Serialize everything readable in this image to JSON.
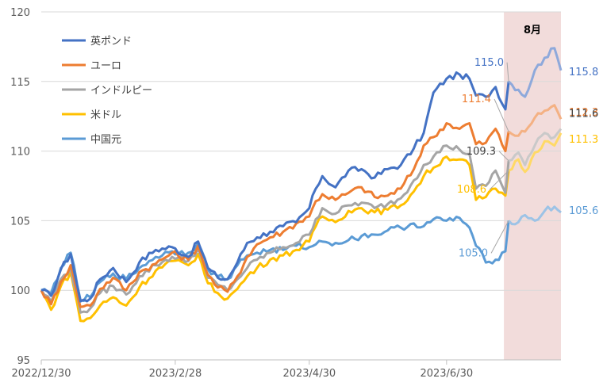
{
  "chart_data": {
    "type": "line",
    "title": "",
    "xlabel": "",
    "ylabel": "",
    "ylim": [
      95,
      120
    ],
    "yticks": [
      95,
      100,
      105,
      110,
      115,
      120
    ],
    "x_tick_labels": [
      "2022/12/30",
      "2023/2/28",
      "2023/4/30",
      "2023/6/30"
    ],
    "x_tick_index": [
      0,
      41,
      82,
      124
    ],
    "n_points": 160,
    "highlight": {
      "label": "8月",
      "start_index": 143,
      "end_index": 159,
      "color": "#f2dcdb"
    },
    "legend_position": "top-left",
    "grid": {
      "y": true,
      "x": false
    },
    "series": [
      {
        "name": "英ポンド",
        "color": "#4472c4",
        "faded_color": "#8ea9db",
        "keypoints": [
          [
            0,
            100.0
          ],
          [
            3,
            99.6
          ],
          [
            6,
            101.5
          ],
          [
            9,
            102.6
          ],
          [
            12,
            99.2
          ],
          [
            15,
            99.4
          ],
          [
            18,
            100.8
          ],
          [
            22,
            101.6
          ],
          [
            26,
            100.6
          ],
          [
            30,
            102.0
          ],
          [
            35,
            102.9
          ],
          [
            40,
            103.1
          ],
          [
            45,
            102.4
          ],
          [
            48,
            103.5
          ],
          [
            51,
            101.6
          ],
          [
            54,
            100.9
          ],
          [
            57,
            100.8
          ],
          [
            60,
            102.0
          ],
          [
            63,
            103.4
          ],
          [
            66,
            103.8
          ],
          [
            70,
            104.2
          ],
          [
            74,
            104.6
          ],
          [
            78,
            104.9
          ],
          [
            82,
            105.9
          ],
          [
            84,
            107.3
          ],
          [
            86,
            108.2
          ],
          [
            90,
            107.4
          ],
          [
            94,
            108.6
          ],
          [
            98,
            108.7
          ],
          [
            102,
            108.1
          ],
          [
            106,
            108.7
          ],
          [
            110,
            109.0
          ],
          [
            114,
            110.2
          ],
          [
            117,
            111.3
          ],
          [
            120,
            114.2
          ],
          [
            124,
            115.2
          ],
          [
            128,
            115.5
          ],
          [
            131,
            115.2
          ],
          [
            133,
            114.0
          ],
          [
            136,
            113.9
          ],
          [
            139,
            114.6
          ],
          [
            142,
            113.0
          ],
          [
            143,
            115.0
          ],
          [
            146,
            114.4
          ],
          [
            148,
            113.9
          ],
          [
            151,
            115.8
          ],
          [
            154,
            116.7
          ],
          [
            157,
            117.4
          ],
          [
            159,
            115.8
          ]
        ],
        "highlight_labels": [
          {
            "index": 143,
            "text": "115.0"
          },
          {
            "index": 159,
            "text": "115.8"
          }
        ]
      },
      {
        "name": "ユーロ",
        "color": "#ed7d31",
        "faded_color": "#f4b183",
        "keypoints": [
          [
            0,
            100.0
          ],
          [
            3,
            99.0
          ],
          [
            6,
            100.6
          ],
          [
            9,
            101.8
          ],
          [
            12,
            98.8
          ],
          [
            15,
            98.9
          ],
          [
            18,
            100.1
          ],
          [
            22,
            100.9
          ],
          [
            26,
            100.0
          ],
          [
            30,
            101.3
          ],
          [
            35,
            101.9
          ],
          [
            40,
            102.7
          ],
          [
            45,
            102.2
          ],
          [
            48,
            103.2
          ],
          [
            51,
            101.1
          ],
          [
            54,
            100.2
          ],
          [
            57,
            99.9
          ],
          [
            60,
            101.0
          ],
          [
            63,
            102.4
          ],
          [
            66,
            103.3
          ],
          [
            70,
            103.8
          ],
          [
            74,
            104.2
          ],
          [
            78,
            104.8
          ],
          [
            82,
            105.3
          ],
          [
            84,
            106.4
          ],
          [
            86,
            106.9
          ],
          [
            90,
            106.5
          ],
          [
            94,
            107.0
          ],
          [
            98,
            107.4
          ],
          [
            102,
            106.7
          ],
          [
            106,
            106.8
          ],
          [
            110,
            107.3
          ],
          [
            114,
            108.7
          ],
          [
            117,
            110.4
          ],
          [
            120,
            111.0
          ],
          [
            124,
            112.0
          ],
          [
            128,
            111.6
          ],
          [
            131,
            112.0
          ],
          [
            133,
            110.5
          ],
          [
            136,
            110.6
          ],
          [
            139,
            111.6
          ],
          [
            142,
            110.0
          ],
          [
            143,
            111.4
          ],
          [
            146,
            111.1
          ],
          [
            148,
            111.4
          ],
          [
            151,
            112.4
          ],
          [
            154,
            112.9
          ],
          [
            157,
            113.3
          ],
          [
            159,
            112.3
          ]
        ],
        "highlight_labels": [
          {
            "index": 143,
            "text": "111.4"
          },
          {
            "index": 159,
            "text": "112.3"
          }
        ]
      },
      {
        "name": "インドルピー",
        "color": "#a5a5a5",
        "faded_color": "#c9c9c9",
        "keypoints": [
          [
            0,
            100.0
          ],
          [
            3,
            99.2
          ],
          [
            6,
            100.8
          ],
          [
            9,
            101.6
          ],
          [
            12,
            98.4
          ],
          [
            15,
            98.7
          ],
          [
            18,
            99.8
          ],
          [
            22,
            100.3
          ],
          [
            26,
            99.7
          ],
          [
            30,
            101.0
          ],
          [
            35,
            101.8
          ],
          [
            40,
            102.4
          ],
          [
            45,
            102.1
          ],
          [
            48,
            103.0
          ],
          [
            51,
            100.9
          ],
          [
            54,
            100.4
          ],
          [
            57,
            100.0
          ],
          [
            60,
            100.8
          ],
          [
            63,
            101.6
          ],
          [
            66,
            102.2
          ],
          [
            70,
            102.7
          ],
          [
            74,
            103.1
          ],
          [
            78,
            103.4
          ],
          [
            82,
            104.0
          ],
          [
            84,
            105.1
          ],
          [
            86,
            105.9
          ],
          [
            90,
            105.5
          ],
          [
            94,
            106.1
          ],
          [
            98,
            106.3
          ],
          [
            102,
            105.9
          ],
          [
            106,
            106.2
          ],
          [
            110,
            106.6
          ],
          [
            114,
            107.9
          ],
          [
            117,
            109.0
          ],
          [
            120,
            109.6
          ],
          [
            124,
            110.4
          ],
          [
            128,
            110.1
          ],
          [
            131,
            109.8
          ],
          [
            133,
            107.3
          ],
          [
            136,
            107.5
          ],
          [
            139,
            108.6
          ],
          [
            142,
            107.0
          ],
          [
            143,
            109.3
          ],
          [
            146,
            109.9
          ],
          [
            148,
            109.0
          ],
          [
            151,
            110.4
          ],
          [
            154,
            111.3
          ],
          [
            157,
            111.0
          ],
          [
            159,
            111.6
          ]
        ],
        "highlight_labels": [
          {
            "index": 143,
            "text": "109.3"
          },
          {
            "index": 159,
            "text": "111.6"
          }
        ]
      },
      {
        "name": "米ドル",
        "color": "#ffc000",
        "faded_color": "#ffd966",
        "keypoints": [
          [
            0,
            100.0
          ],
          [
            3,
            98.6
          ],
          [
            6,
            100.3
          ],
          [
            9,
            101.3
          ],
          [
            12,
            97.8
          ],
          [
            15,
            98.0
          ],
          [
            18,
            98.9
          ],
          [
            22,
            99.5
          ],
          [
            26,
            98.9
          ],
          [
            30,
            100.2
          ],
          [
            35,
            101.4
          ],
          [
            40,
            102.1
          ],
          [
            45,
            101.8
          ],
          [
            48,
            102.6
          ],
          [
            51,
            100.5
          ],
          [
            54,
            99.8
          ],
          [
            57,
            99.4
          ],
          [
            60,
            100.1
          ],
          [
            63,
            101.0
          ],
          [
            66,
            101.6
          ],
          [
            70,
            102.2
          ],
          [
            74,
            102.5
          ],
          [
            78,
            102.9
          ],
          [
            82,
            103.5
          ],
          [
            84,
            104.6
          ],
          [
            86,
            105.3
          ],
          [
            90,
            104.9
          ],
          [
            94,
            105.7
          ],
          [
            98,
            105.9
          ],
          [
            102,
            105.6
          ],
          [
            106,
            105.8
          ],
          [
            110,
            106.1
          ],
          [
            114,
            107.1
          ],
          [
            117,
            108.2
          ],
          [
            120,
            108.8
          ],
          [
            124,
            109.6
          ],
          [
            128,
            109.4
          ],
          [
            131,
            109.0
          ],
          [
            133,
            106.5
          ],
          [
            136,
            106.7
          ],
          [
            139,
            107.3
          ],
          [
            142,
            106.8
          ],
          [
            143,
            108.6
          ],
          [
            146,
            109.4
          ],
          [
            148,
            108.5
          ],
          [
            151,
            109.9
          ],
          [
            154,
            110.7
          ],
          [
            157,
            110.4
          ],
          [
            159,
            111.3
          ]
        ],
        "highlight_labels": [
          {
            "index": 143,
            "text": "108.6"
          },
          {
            "index": 159,
            "text": "111.3"
          }
        ]
      },
      {
        "name": "中国元",
        "color": "#5b9bd5",
        "faded_color": "#9dc3e6",
        "keypoints": [
          [
            0,
            100.0
          ],
          [
            3,
            99.8
          ],
          [
            6,
            101.6
          ],
          [
            9,
            102.7
          ],
          [
            12,
            99.3
          ],
          [
            15,
            99.5
          ],
          [
            18,
            100.6
          ],
          [
            22,
            101.2
          ],
          [
            26,
            100.8
          ],
          [
            30,
            101.6
          ],
          [
            35,
            102.4
          ],
          [
            40,
            102.8
          ],
          [
            45,
            102.7
          ],
          [
            48,
            103.4
          ],
          [
            51,
            101.5
          ],
          [
            54,
            101.0
          ],
          [
            57,
            100.8
          ],
          [
            60,
            101.8
          ],
          [
            63,
            102.5
          ],
          [
            66,
            102.7
          ],
          [
            70,
            102.9
          ],
          [
            74,
            102.9
          ],
          [
            78,
            103.2
          ],
          [
            82,
            103.1
          ],
          [
            84,
            103.3
          ],
          [
            86,
            103.5
          ],
          [
            90,
            103.4
          ],
          [
            94,
            103.6
          ],
          [
            98,
            103.9
          ],
          [
            102,
            104.0
          ],
          [
            106,
            104.3
          ],
          [
            110,
            104.5
          ],
          [
            114,
            104.8
          ],
          [
            117,
            104.6
          ],
          [
            120,
            105.1
          ],
          [
            124,
            105.0
          ],
          [
            128,
            105.2
          ],
          [
            131,
            104.5
          ],
          [
            133,
            103.2
          ],
          [
            136,
            102.0
          ],
          [
            139,
            102.2
          ],
          [
            142,
            102.8
          ],
          [
            143,
            105.0
          ],
          [
            146,
            104.9
          ],
          [
            148,
            105.4
          ],
          [
            151,
            105.0
          ],
          [
            154,
            105.7
          ],
          [
            157,
            106.0
          ],
          [
            159,
            105.6
          ]
        ],
        "highlight_labels": [
          {
            "index": 143,
            "text": "105.0"
          },
          {
            "index": 159,
            "text": "105.6"
          }
        ]
      }
    ]
  }
}
